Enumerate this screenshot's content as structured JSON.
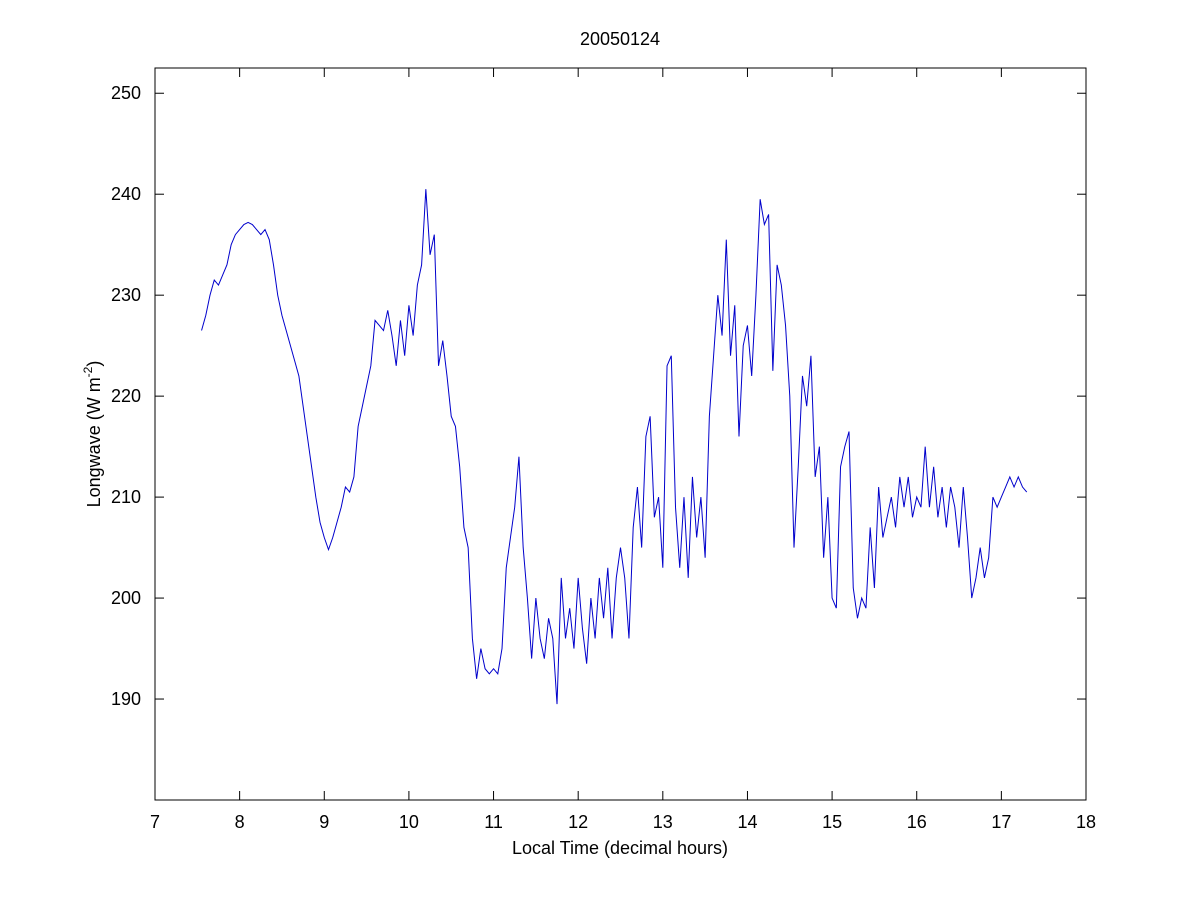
{
  "chart_data": {
    "type": "line",
    "title": "20050124",
    "xlabel": "Local Time (decimal hours)",
    "ylabel": [
      "Longwave (W m",
      "-2",
      ")"
    ],
    "xlim": [
      7,
      18
    ],
    "xticks": [
      7,
      8,
      9,
      10,
      11,
      12,
      13,
      14,
      15,
      16,
      17,
      18
    ],
    "ylim": [
      180,
      252.5
    ],
    "yticks": [
      190,
      200,
      210,
      220,
      230,
      240,
      250
    ],
    "grid": false,
    "series": [
      {
        "color": "#0000cc",
        "x": [
          7.55,
          7.6,
          7.65,
          7.7,
          7.75,
          7.8,
          7.85,
          7.9,
          7.95,
          8.0,
          8.05,
          8.1,
          8.15,
          8.2,
          8.25,
          8.3,
          8.35,
          8.4,
          8.45,
          8.5,
          8.55,
          8.6,
          8.65,
          8.7,
          8.75,
          8.8,
          8.85,
          8.9,
          8.95,
          9.0,
          9.05,
          9.1,
          9.15,
          9.2,
          9.25,
          9.3,
          9.35,
          9.4,
          9.45,
          9.5,
          9.55,
          9.6,
          9.65,
          9.7,
          9.75,
          9.8,
          9.85,
          9.9,
          9.95,
          10.0,
          10.05,
          10.1,
          10.15,
          10.2,
          10.25,
          10.3,
          10.35,
          10.4,
          10.45,
          10.5,
          10.55,
          10.6,
          10.65,
          10.7,
          10.75,
          10.8,
          10.85,
          10.9,
          10.95,
          11.0,
          11.05,
          11.1,
          11.15,
          11.2,
          11.25,
          11.3,
          11.35,
          11.4,
          11.45,
          11.5,
          11.55,
          11.6,
          11.65,
          11.7,
          11.75,
          11.8,
          11.85,
          11.9,
          11.95,
          12.0,
          12.05,
          12.1,
          12.15,
          12.2,
          12.25,
          12.3,
          12.35,
          12.4,
          12.45,
          12.5,
          12.55,
          12.6,
          12.65,
          12.7,
          12.75,
          12.8,
          12.85,
          12.9,
          12.95,
          13.0,
          13.05,
          13.1,
          13.15,
          13.2,
          13.25,
          13.3,
          13.35,
          13.4,
          13.45,
          13.5,
          13.55,
          13.6,
          13.65,
          13.7,
          13.75,
          13.8,
          13.85,
          13.9,
          13.95,
          14.0,
          14.05,
          14.1,
          14.15,
          14.2,
          14.25,
          14.3,
          14.35,
          14.4,
          14.45,
          14.5,
          14.55,
          14.6,
          14.65,
          14.7,
          14.75,
          14.8,
          14.85,
          14.9,
          14.95,
          15.0,
          15.05,
          15.1,
          15.15,
          15.2,
          15.25,
          15.3,
          15.35,
          15.4,
          15.45,
          15.5,
          15.55,
          15.6,
          15.65,
          15.7,
          15.75,
          15.8,
          15.85,
          15.9,
          15.95,
          16.0,
          16.05,
          16.1,
          16.15,
          16.2,
          16.25,
          16.3,
          16.35,
          16.4,
          16.45,
          16.5,
          16.55,
          16.6,
          16.65,
          16.7,
          16.75,
          16.8,
          16.85,
          16.9,
          16.95,
          17.0,
          17.05,
          17.1,
          17.15,
          17.2,
          17.25,
          17.3
        ],
        "values": [
          226.5,
          228,
          230,
          231.5,
          231,
          232,
          233,
          235,
          236,
          236.5,
          237,
          237.2,
          237,
          236.5,
          236,
          236.5,
          235.5,
          233,
          230,
          228,
          226.5,
          225,
          223.5,
          222,
          219,
          216,
          213,
          210,
          207.5,
          206,
          204.8,
          206,
          207.5,
          209,
          211,
          210.5,
          212,
          217,
          219,
          221,
          223,
          227.5,
          227,
          226.5,
          228.5,
          226,
          223,
          227.5,
          224,
          229,
          226,
          231,
          233,
          240.5,
          234,
          236,
          223,
          225.5,
          222,
          218,
          217,
          213,
          207,
          205,
          196,
          192,
          195,
          193,
          192.5,
          193,
          192.5,
          195,
          203,
          206,
          209,
          214,
          205,
          200,
          194,
          200,
          196,
          194,
          198,
          196,
          189.5,
          202,
          196,
          199,
          195,
          202,
          197,
          193.5,
          200,
          196,
          202,
          198,
          203,
          196,
          202,
          205,
          202,
          196,
          207,
          211,
          205,
          216,
          218,
          208,
          210,
          203,
          223,
          224,
          209,
          203,
          210,
          202,
          212,
          206,
          210,
          204,
          218,
          224,
          230,
          226,
          235.5,
          224,
          229,
          216,
          225,
          227,
          222,
          230,
          239.5,
          237,
          238,
          222.5,
          233,
          231,
          227,
          220,
          205,
          213,
          222,
          219,
          224,
          212,
          215,
          204,
          210,
          200,
          199,
          213,
          215,
          216.5,
          201,
          198,
          200,
          199,
          207,
          201,
          211,
          206,
          208,
          210,
          207,
          212,
          209,
          212,
          208,
          210,
          209,
          215,
          209,
          213,
          208,
          211,
          207,
          211,
          209,
          205,
          211,
          206,
          200,
          202,
          205,
          202,
          204,
          210,
          209,
          210,
          211,
          212,
          211,
          212,
          211,
          210.5
        ]
      }
    ]
  }
}
